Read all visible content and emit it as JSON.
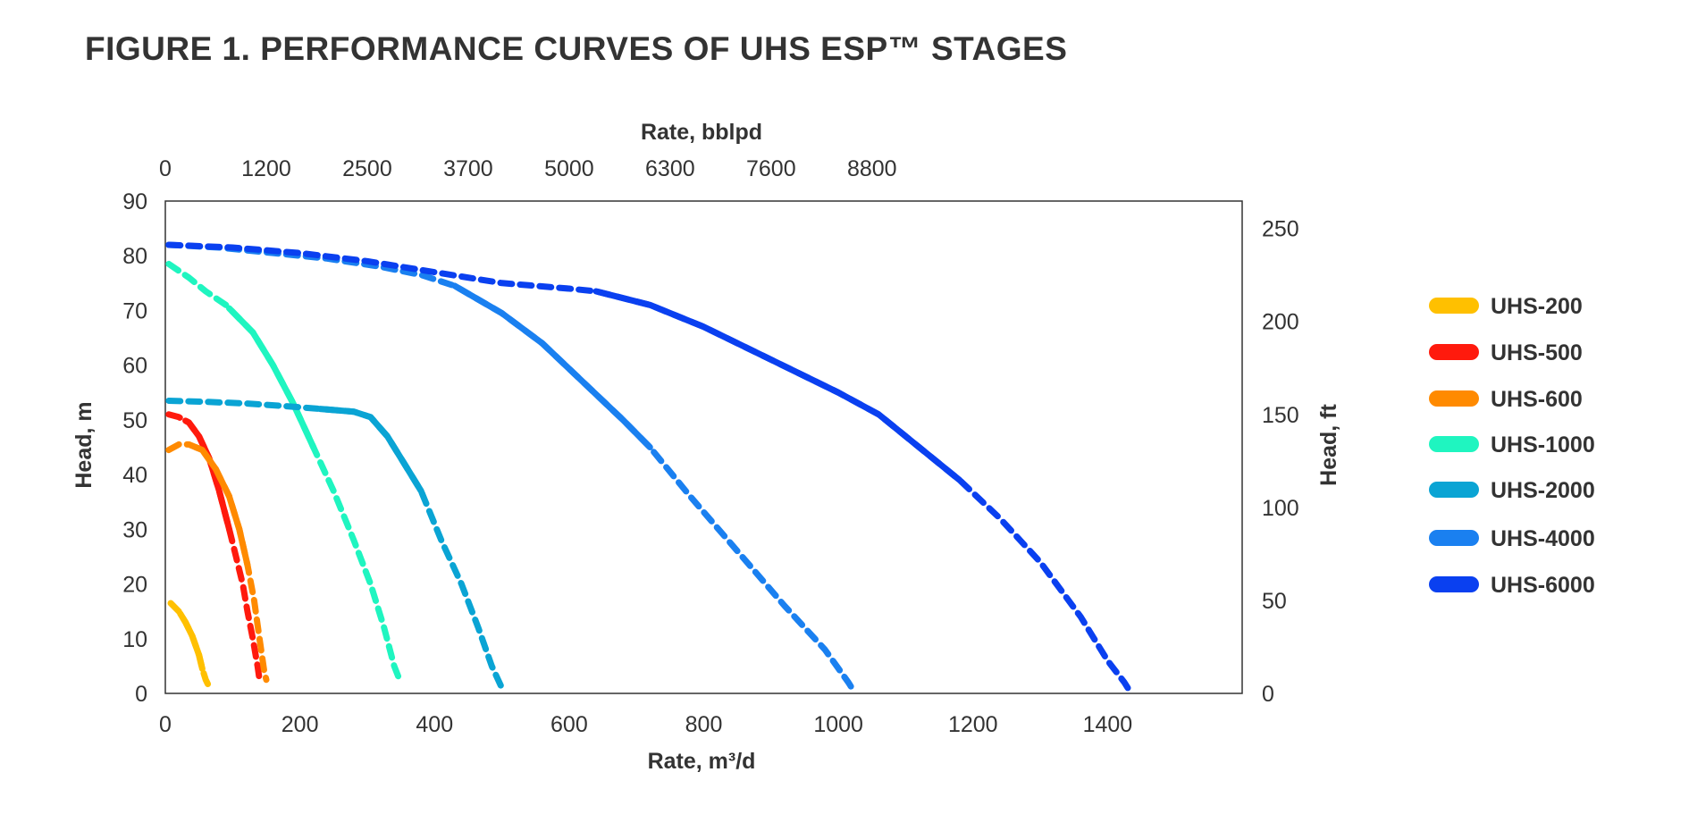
{
  "figure_title": "FIGURE 1. PERFORMANCE CURVES OF UHS ESP™ STAGES",
  "chart_data": {
    "type": "line",
    "title": "FIGURE 1. PERFORMANCE CURVES OF UHS ESP™ STAGES",
    "xlabel": "Rate, m³/d",
    "ylabel": "Head, m",
    "x2label": "Rate, bblpd",
    "y2label": "Head, ft",
    "xlim": [
      0,
      1600
    ],
    "ylim": [
      0,
      90
    ],
    "x_ticks": [
      "0",
      "200",
      "400",
      "600",
      "800",
      "1000",
      "1200",
      "1400"
    ],
    "y_ticks": [
      "0",
      "10",
      "20",
      "30",
      "40",
      "50",
      "60",
      "70",
      "80",
      "90"
    ],
    "x2_ticks": [
      "0",
      "1200",
      "2500",
      "3700",
      "5000",
      "6300",
      "7600",
      "8800"
    ],
    "y2_ticks": [
      "0",
      "50",
      "100",
      "150",
      "200",
      "250"
    ],
    "legend_position": "right",
    "grid": false,
    "line_note": "solid segment = operating range, dashed = outside range",
    "series": [
      {
        "name": "UHS-200",
        "color": "#ffc000",
        "points": [
          [
            8,
            16.5
          ],
          [
            20,
            15
          ],
          [
            30,
            13
          ],
          [
            40,
            10.5
          ],
          [
            50,
            7
          ],
          [
            55,
            4.5
          ],
          [
            60,
            2.5
          ],
          [
            64,
            1.5
          ]
        ],
        "solid_range": [
          22,
          55
        ]
      },
      {
        "name": "UHS-500",
        "color": "#ff1a0d",
        "points": [
          [
            5,
            51
          ],
          [
            20,
            50.5
          ],
          [
            35,
            49.5
          ],
          [
            50,
            47
          ],
          [
            65,
            43
          ],
          [
            80,
            37
          ],
          [
            95,
            30
          ],
          [
            105,
            25
          ],
          [
            115,
            20
          ],
          [
            122,
            15
          ],
          [
            130,
            10
          ],
          [
            137,
            5
          ],
          [
            140,
            2.5
          ]
        ],
        "solid_range": [
          30,
          95
        ]
      },
      {
        "name": "UHS-600",
        "color": "#ff8a00",
        "points": [
          [
            5,
            44.5
          ],
          [
            20,
            45.5
          ],
          [
            35,
            45.5
          ],
          [
            55,
            44.5
          ],
          [
            75,
            41
          ],
          [
            95,
            36
          ],
          [
            110,
            30
          ],
          [
            122,
            23.5
          ],
          [
            132,
            17
          ],
          [
            140,
            10
          ],
          [
            147,
            4
          ],
          [
            150,
            2.5
          ]
        ],
        "solid_range": [
          45,
          122
        ]
      },
      {
        "name": "UHS-1000",
        "color": "#1ff5c0",
        "points": [
          [
            5,
            78.5
          ],
          [
            35,
            76
          ],
          [
            60,
            73.5
          ],
          [
            90,
            71
          ],
          [
            130,
            66
          ],
          [
            160,
            60
          ],
          [
            190,
            53
          ],
          [
            220,
            45
          ],
          [
            250,
            37
          ],
          [
            280,
            28
          ],
          [
            305,
            20
          ],
          [
            325,
            12
          ],
          [
            340,
            5
          ],
          [
            348,
            2.5
          ]
        ],
        "solid_range": [
          95,
          220
        ]
      },
      {
        "name": "UHS-2000",
        "color": "#0aa4d4",
        "points": [
          [
            5,
            53.5
          ],
          [
            60,
            53.3
          ],
          [
            120,
            53
          ],
          [
            180,
            52.5
          ],
          [
            230,
            52
          ],
          [
            280,
            51.5
          ],
          [
            305,
            50.5
          ],
          [
            330,
            47
          ],
          [
            355,
            42
          ],
          [
            380,
            37
          ],
          [
            410,
            28
          ],
          [
            440,
            20
          ],
          [
            465,
            12
          ],
          [
            485,
            5
          ],
          [
            500,
            1
          ]
        ],
        "solid_range": [
          230,
          380
        ]
      },
      {
        "name": "UHS-4000",
        "color": "#1a80f0",
        "points": [
          [
            5,
            82
          ],
          [
            80,
            81.5
          ],
          [
            160,
            80.5
          ],
          [
            240,
            79.5
          ],
          [
            320,
            78
          ],
          [
            380,
            76.5
          ],
          [
            430,
            74.5
          ],
          [
            500,
            69.5
          ],
          [
            560,
            64
          ],
          [
            620,
            57
          ],
          [
            680,
            50
          ],
          [
            720,
            45
          ],
          [
            780,
            36
          ],
          [
            850,
            26
          ],
          [
            920,
            16
          ],
          [
            980,
            8
          ],
          [
            1015,
            2
          ],
          [
            1020,
            1
          ]
        ],
        "solid_range": [
          430,
          720
        ]
      },
      {
        "name": "UHS-6000",
        "color": "#0a40f0",
        "points": [
          [
            5,
            82
          ],
          [
            100,
            81.5
          ],
          [
            200,
            80.5
          ],
          [
            300,
            79
          ],
          [
            400,
            77
          ],
          [
            500,
            75
          ],
          [
            600,
            74
          ],
          [
            640,
            73.5
          ],
          [
            720,
            71
          ],
          [
            800,
            67
          ],
          [
            900,
            61
          ],
          [
            1000,
            55
          ],
          [
            1060,
            51
          ],
          [
            1120,
            45
          ],
          [
            1180,
            39
          ],
          [
            1240,
            32
          ],
          [
            1300,
            24
          ],
          [
            1360,
            14
          ],
          [
            1400,
            6
          ],
          [
            1425,
            2
          ],
          [
            1430,
            1
          ]
        ],
        "solid_range": [
          640,
          1180
        ]
      }
    ]
  }
}
